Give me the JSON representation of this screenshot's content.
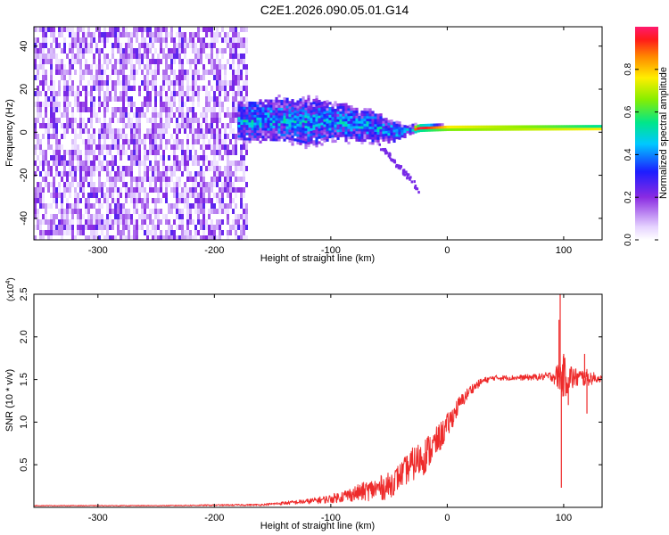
{
  "title": "C2E1.2026.090.05.01.G14",
  "chart_data": [
    {
      "type": "heatmap",
      "name": "spectrogram",
      "xlabel": "Height of straight line (km)",
      "ylabel": "Frequency (Hz)",
      "xlim": [
        -355,
        133
      ],
      "ylim": [
        -50,
        49
      ],
      "xticks": [
        -300,
        -200,
        -100,
        0,
        100
      ],
      "xtick_labels": [
        "-300",
        "-200",
        "-100",
        "0",
        "100"
      ],
      "yticks": [
        -40,
        -20,
        0,
        20,
        40
      ],
      "ytick_labels": [
        "-40",
        "-20",
        "0",
        "20",
        "40"
      ],
      "colorbar": {
        "label": "Normalized spectral amplitude",
        "range": [
          0,
          1
        ],
        "ticks": [
          0.0,
          0.2,
          0.4,
          0.6,
          0.8
        ],
        "tick_labels": [
          "0.0",
          "0.2",
          "0.4",
          "0.6",
          "0.8"
        ]
      },
      "features": {
        "noise_region_x": [
          -355,
          -172
        ],
        "signal_onset_x": -180,
        "dominant_frequency_hz": 2,
        "band_center_hz": [
          [
            -180,
            5
          ],
          [
            -140,
            6
          ],
          [
            -120,
            5
          ],
          [
            -100,
            5
          ],
          [
            -80,
            4
          ],
          [
            -60,
            2
          ],
          [
            -45,
            0
          ],
          [
            -35,
            1
          ],
          [
            -25,
            2
          ],
          [
            0,
            2
          ],
          [
            130,
            2
          ]
        ],
        "band_halfwidth_hz": [
          [
            -180,
            8
          ],
          [
            -140,
            9
          ],
          [
            -120,
            10
          ],
          [
            -100,
            8
          ],
          [
            -80,
            7
          ],
          [
            -60,
            6
          ],
          [
            -45,
            4
          ],
          [
            -35,
            2
          ],
          [
            -25,
            1.5
          ],
          [
            0,
            1.2
          ],
          [
            130,
            1
          ]
        ]
      }
    },
    {
      "type": "line",
      "name": "snr",
      "xlabel": "Height of straight line (km)",
      "ylabel": "SNR (10 * v/v)",
      "y_scale_label": "(x10",
      "y_scale_exponent": "4",
      "xlim": [
        -355,
        133
      ],
      "ylim": [
        0,
        2.5
      ],
      "xticks": [
        -300,
        -200,
        -100,
        0,
        100
      ],
      "xtick_labels": [
        "-300",
        "-200",
        "-100",
        "0",
        "100"
      ],
      "yticks": [
        0.5,
        1.0,
        1.5,
        2.0,
        2.5
      ],
      "ytick_labels": [
        "0.5",
        "1.0",
        "1.5",
        "2.0",
        "2.5"
      ],
      "color": "#ee2b2b",
      "envelope": {
        "x": [
          -355,
          -250,
          -160,
          -140,
          -120,
          -100,
          -80,
          -60,
          -50,
          -40,
          -30,
          -20,
          -10,
          0,
          10,
          20,
          30,
          40,
          60,
          80,
          90,
          100,
          110,
          120,
          133
        ],
        "y": [
          0.02,
          0.02,
          0.03,
          0.05,
          0.07,
          0.1,
          0.16,
          0.22,
          0.25,
          0.38,
          0.5,
          0.6,
          0.75,
          0.95,
          1.2,
          1.38,
          1.48,
          1.52,
          1.52,
          1.53,
          1.54,
          1.53,
          1.52,
          1.52,
          1.51
        ],
        "noise": [
          0.004,
          0.004,
          0.01,
          0.02,
          0.03,
          0.05,
          0.09,
          0.14,
          0.16,
          0.15,
          0.2,
          0.22,
          0.18,
          0.15,
          0.1,
          0.06,
          0.04,
          0.03,
          0.03,
          0.04,
          0.06,
          0.25,
          0.12,
          0.1,
          0.03
        ]
      },
      "spikes": [
        {
          "x": 97,
          "y": 2.5
        },
        {
          "x": 98,
          "y": 0.23
        },
        {
          "x": 96,
          "y": 2.2
        },
        {
          "x": 100,
          "y": 1.8
        },
        {
          "x": 104,
          "y": 1.2
        },
        {
          "x": 118,
          "y": 1.8
        },
        {
          "x": 120,
          "y": 1.1
        }
      ]
    }
  ]
}
